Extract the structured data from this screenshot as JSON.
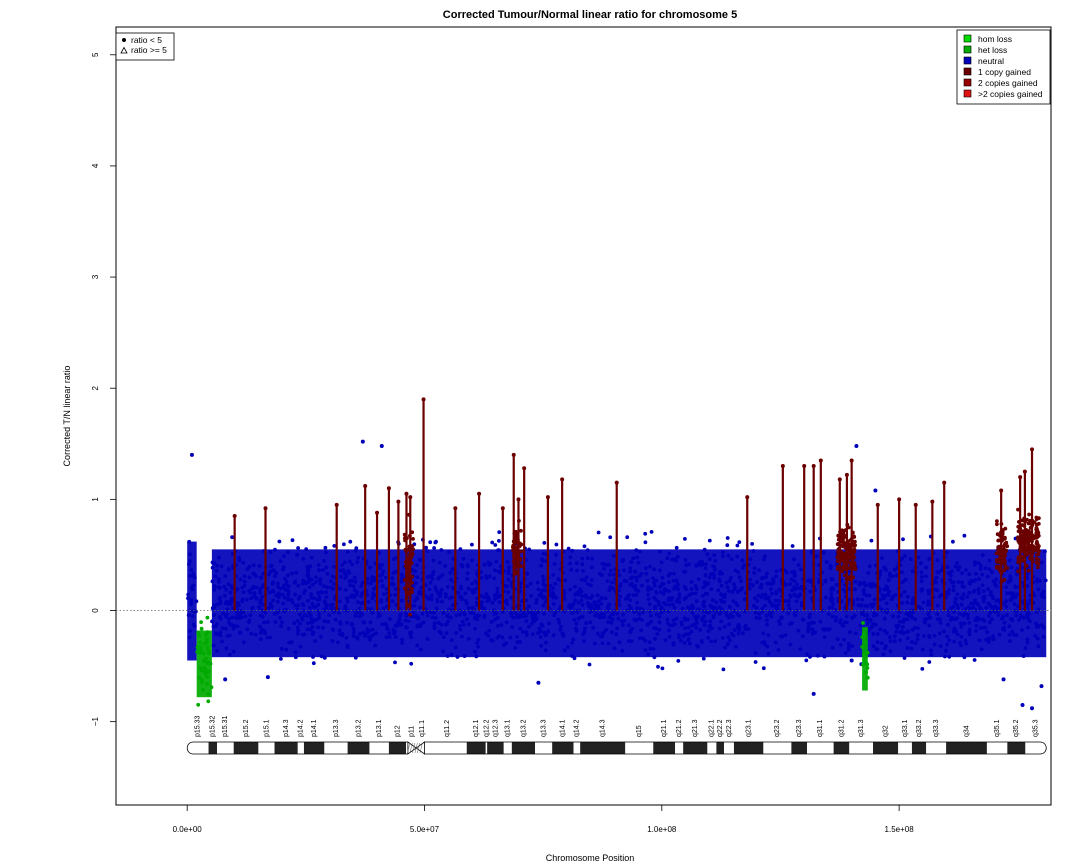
{
  "chart_data": {
    "type": "scatter",
    "title": "Corrected Tumour/Normal linear ratio for chromosome  5",
    "xlabel": "Chromosome Position",
    "ylabel": "Corrected T/N linear ratio",
    "xlim": [
      -15000000,
      182000000
    ],
    "ylim": [
      -1.75,
      5.25
    ],
    "x_ticks": [
      0,
      50000000,
      100000000,
      150000000
    ],
    "x_tick_labels": [
      "0.0e+00",
      "5.0e+07",
      "1.0e+08",
      "1.5e+08"
    ],
    "y_ticks": [
      -1,
      0,
      1,
      2,
      3,
      4,
      5
    ],
    "y_tick_labels": [
      "−1",
      "0",
      "1",
      "2",
      "3",
      "4",
      "5"
    ],
    "reference_line_y": 0,
    "chromosome_length": 181000000,
    "centromere": [
      46500000,
      50000000
    ],
    "shape_legend": {
      "placement": "top-left",
      "items": [
        {
          "symbol": "filled-circle",
          "label": "ratio < 5"
        },
        {
          "symbol": "open-triangle",
          "label": "ratio >= 5"
        }
      ]
    },
    "color_legend": {
      "placement": "top-right",
      "items": [
        {
          "label": "hom loss",
          "color": "#00DD00"
        },
        {
          "label": "het loss",
          "color": "#00AA00"
        },
        {
          "label": "neutral",
          "color": "#0000B8"
        },
        {
          "label": "1 copy gained",
          "color": "#6B0000"
        },
        {
          "label": "2 copies gained",
          "color": "#990000"
        },
        {
          "label": ">2 copies gained",
          "color": "#DD1111"
        }
      ]
    },
    "neutral_band": {
      "low": -0.42,
      "high": 0.55,
      "color": "#0000B8"
    },
    "segments": [
      {
        "state": "neutral",
        "start": 0,
        "end": 2000000,
        "low": -0.45,
        "high": 0.62
      },
      {
        "state": "het loss",
        "start": 2000000,
        "end": 5200000,
        "low": -0.78,
        "high": -0.18
      },
      {
        "state": "neutral",
        "start": 5200000,
        "end": 181000000,
        "low": -0.42,
        "high": 0.55
      },
      {
        "state": "het loss",
        "start": 142200000,
        "end": 143400000,
        "low": -0.72,
        "high": -0.15
      }
    ],
    "gain_spikes": [
      {
        "x": 10000000,
        "top": 0.85
      },
      {
        "x": 16500000,
        "top": 0.92
      },
      {
        "x": 31500000,
        "top": 0.95
      },
      {
        "x": 37500000,
        "top": 1.12
      },
      {
        "x": 40000000,
        "top": 0.88
      },
      {
        "x": 42500000,
        "top": 1.1
      },
      {
        "x": 44500000,
        "top": 0.98
      },
      {
        "x": 46200000,
        "top": 1.05
      },
      {
        "x": 47000000,
        "top": 1.02
      },
      {
        "x": 49800000,
        "top": 1.9
      },
      {
        "x": 56500000,
        "top": 0.92
      },
      {
        "x": 61500000,
        "top": 1.05
      },
      {
        "x": 66500000,
        "top": 0.92
      },
      {
        "x": 68800000,
        "top": 1.4
      },
      {
        "x": 69800000,
        "top": 1.0
      },
      {
        "x": 71000000,
        "top": 1.28
      },
      {
        "x": 76000000,
        "top": 1.02
      },
      {
        "x": 79000000,
        "top": 1.18
      },
      {
        "x": 90500000,
        "top": 1.15
      },
      {
        "x": 118000000,
        "top": 1.02
      },
      {
        "x": 125500000,
        "top": 1.3
      },
      {
        "x": 130000000,
        "top": 1.3
      },
      {
        "x": 132000000,
        "top": 1.3
      },
      {
        "x": 133500000,
        "top": 1.35
      },
      {
        "x": 137500000,
        "top": 1.18
      },
      {
        "x": 139000000,
        "top": 1.22
      },
      {
        "x": 140000000,
        "top": 1.35
      },
      {
        "x": 145500000,
        "top": 0.95
      },
      {
        "x": 150000000,
        "top": 1.0
      },
      {
        "x": 153500000,
        "top": 0.95
      },
      {
        "x": 157000000,
        "top": 0.98
      },
      {
        "x": 159500000,
        "top": 1.15
      },
      {
        "x": 171500000,
        "top": 1.08
      },
      {
        "x": 175500000,
        "top": 1.2
      },
      {
        "x": 176500000,
        "top": 1.25
      },
      {
        "x": 178000000,
        "top": 1.45
      }
    ],
    "gain_clusters": [
      {
        "start": 45800000,
        "end": 47600000,
        "low": -0.2,
        "high": 0.95
      },
      {
        "start": 68600000,
        "end": 70400000,
        "low": 0.2,
        "high": 0.85
      },
      {
        "start": 137000000,
        "end": 140800000,
        "low": 0.2,
        "high": 0.85
      },
      {
        "start": 170500000,
        "end": 172800000,
        "low": 0.2,
        "high": 0.85
      },
      {
        "start": 175000000,
        "end": 179500000,
        "low": 0.3,
        "high": 0.95
      }
    ],
    "outliers": [
      {
        "x": 1000000,
        "y": 1.4
      },
      {
        "x": 41000000,
        "y": 1.48
      },
      {
        "x": 37000000,
        "y": 1.52
      },
      {
        "x": 141000000,
        "y": 1.48
      },
      {
        "x": 145000000,
        "y": 1.08
      },
      {
        "x": 140000000,
        "y": -0.45
      },
      {
        "x": 132000000,
        "y": -0.75
      },
      {
        "x": 176000000,
        "y": -0.85
      },
      {
        "x": 178000000,
        "y": -0.88
      },
      {
        "x": 172000000,
        "y": -0.62
      },
      {
        "x": 74000000,
        "y": -0.65
      },
      {
        "x": 8000000,
        "y": -0.62
      },
      {
        "x": 17000000,
        "y": -0.6
      },
      {
        "x": 180000000,
        "y": -0.68
      }
    ],
    "cytobands": [
      {
        "name": "p15.33",
        "start": 0,
        "end": 4500000,
        "stain": "gneg"
      },
      {
        "name": "p15.32",
        "start": 4500000,
        "end": 6300000,
        "stain": "gpos"
      },
      {
        "name": "p15.31",
        "start": 6300000,
        "end": 9800000,
        "stain": "gneg"
      },
      {
        "name": "p15.2",
        "start": 9800000,
        "end": 15000000,
        "stain": "gpos"
      },
      {
        "name": "p15.1",
        "start": 15000000,
        "end": 18400000,
        "stain": "gneg"
      },
      {
        "name": "p14.3",
        "start": 18400000,
        "end": 23300000,
        "stain": "gpos"
      },
      {
        "name": "p14.2",
        "start": 23300000,
        "end": 24600000,
        "stain": "gneg"
      },
      {
        "name": "p14.1",
        "start": 24600000,
        "end": 28900000,
        "stain": "gpos"
      },
      {
        "name": "p13.3",
        "start": 28900000,
        "end": 33800000,
        "stain": "gneg"
      },
      {
        "name": "p13.2",
        "start": 33800000,
        "end": 38400000,
        "stain": "gpos"
      },
      {
        "name": "p13.1",
        "start": 38400000,
        "end": 42500000,
        "stain": "gneg"
      },
      {
        "name": "p12",
        "start": 42500000,
        "end": 46100000,
        "stain": "gpos"
      },
      {
        "name": "p11",
        "start": 46100000,
        "end": 48400000,
        "stain": "acen"
      },
      {
        "name": "q11.1",
        "start": 48400000,
        "end": 50700000,
        "stain": "acen"
      },
      {
        "name": "q11.2",
        "start": 50700000,
        "end": 58900000,
        "stain": "gneg"
      },
      {
        "name": "q12.1",
        "start": 58900000,
        "end": 62900000,
        "stain": "gpos"
      },
      {
        "name": "q12.2",
        "start": 62900000,
        "end": 63200000,
        "stain": "gneg"
      },
      {
        "name": "q12.3",
        "start": 63200000,
        "end": 66700000,
        "stain": "gpos"
      },
      {
        "name": "q13.1",
        "start": 66700000,
        "end": 68400000,
        "stain": "gneg"
      },
      {
        "name": "q13.2",
        "start": 68400000,
        "end": 73300000,
        "stain": "gpos"
      },
      {
        "name": "q13.3",
        "start": 73300000,
        "end": 76900000,
        "stain": "gneg"
      },
      {
        "name": "q14.1",
        "start": 76900000,
        "end": 81400000,
        "stain": "gpos"
      },
      {
        "name": "q14.2",
        "start": 81400000,
        "end": 82800000,
        "stain": "gneg"
      },
      {
        "name": "q14.3",
        "start": 82800000,
        "end": 92300000,
        "stain": "gpos"
      },
      {
        "name": "q15",
        "start": 92300000,
        "end": 98200000,
        "stain": "gneg"
      },
      {
        "name": "q21.1",
        "start": 98200000,
        "end": 102800000,
        "stain": "gpos"
      },
      {
        "name": "q21.2",
        "start": 102800000,
        "end": 104500000,
        "stain": "gneg"
      },
      {
        "name": "q21.3",
        "start": 104500000,
        "end": 109600000,
        "stain": "gpos"
      },
      {
        "name": "q22.1",
        "start": 109600000,
        "end": 111500000,
        "stain": "gneg"
      },
      {
        "name": "q22.2",
        "start": 111500000,
        "end": 113100000,
        "stain": "gpos"
      },
      {
        "name": "q22.3",
        "start": 113100000,
        "end": 115200000,
        "stain": "gneg"
      },
      {
        "name": "q23.1",
        "start": 115200000,
        "end": 121400000,
        "stain": "gpos"
      },
      {
        "name": "q23.2",
        "start": 121400000,
        "end": 127300000,
        "stain": "gneg"
      },
      {
        "name": "q23.3",
        "start": 127300000,
        "end": 130600000,
        "stain": "gpos"
      },
      {
        "name": "q31.1",
        "start": 130600000,
        "end": 136200000,
        "stain": "gneg"
      },
      {
        "name": "q31.2",
        "start": 136200000,
        "end": 139500000,
        "stain": "gpos"
      },
      {
        "name": "q31.3",
        "start": 139500000,
        "end": 144500000,
        "stain": "gneg"
      },
      {
        "name": "q32",
        "start": 144500000,
        "end": 149800000,
        "stain": "gpos"
      },
      {
        "name": "q33.1",
        "start": 149800000,
        "end": 152700000,
        "stain": "gneg"
      },
      {
        "name": "q33.2",
        "start": 152700000,
        "end": 155700000,
        "stain": "gpos"
      },
      {
        "name": "q33.3",
        "start": 155700000,
        "end": 159900000,
        "stain": "gneg"
      },
      {
        "name": "q34",
        "start": 159900000,
        "end": 168500000,
        "stain": "gpos"
      },
      {
        "name": "q35.1",
        "start": 168500000,
        "end": 172800000,
        "stain": "gneg"
      },
      {
        "name": "q35.2",
        "start": 172800000,
        "end": 176600000,
        "stain": "gpos"
      },
      {
        "name": "q35.3",
        "start": 176600000,
        "end": 181000000,
        "stain": "gneg"
      }
    ]
  }
}
